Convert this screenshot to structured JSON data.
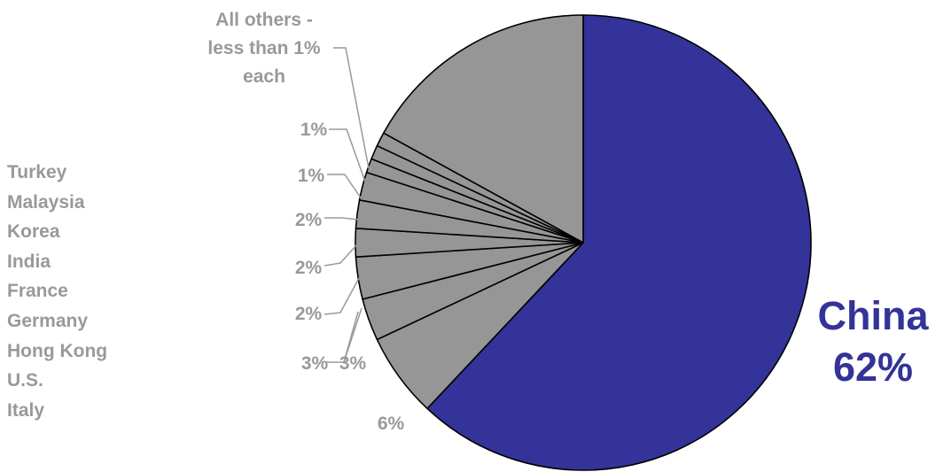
{
  "colors": {
    "china": "#333399",
    "others": "#969696",
    "label_gray": "#999999",
    "leader": "#999999",
    "outline": "#000000"
  },
  "chart_data": {
    "type": "pie",
    "start_angle_deg": 0,
    "direction": "clockwise",
    "slices": [
      {
        "name": "China",
        "value": 62,
        "label": "China\n62%",
        "color": "#333399"
      },
      {
        "name": "Italy",
        "value": 6,
        "label": "6%",
        "color": "#969696"
      },
      {
        "name": "U.S.",
        "value": 3,
        "label": "3%",
        "color": "#969696"
      },
      {
        "name": "Hong Kong",
        "value": 3,
        "label": "3%",
        "color": "#969696"
      },
      {
        "name": "Germany",
        "value": 2,
        "label": "2%",
        "color": "#969696"
      },
      {
        "name": "France",
        "value": 2,
        "label": "2%",
        "color": "#969696"
      },
      {
        "name": "India",
        "value": 2,
        "label": "2%",
        "color": "#969696"
      },
      {
        "name": "Korea",
        "value": 1,
        "label": "",
        "color": "#969696"
      },
      {
        "name": "Malaysia",
        "value": 1,
        "label": "1%",
        "color": "#969696"
      },
      {
        "name": "Turkey",
        "value": 1,
        "label": "1%",
        "color": "#969696"
      },
      {
        "name": "All others",
        "value": 17,
        "label": "All others -\nless than 1%\neach",
        "color": "#969696"
      }
    ]
  },
  "legend": {
    "items": [
      "Turkey",
      "Malaysia",
      "Korea",
      "India",
      "France",
      "Germany",
      "Hong Kong",
      "U.S.",
      "Italy"
    ]
  }
}
